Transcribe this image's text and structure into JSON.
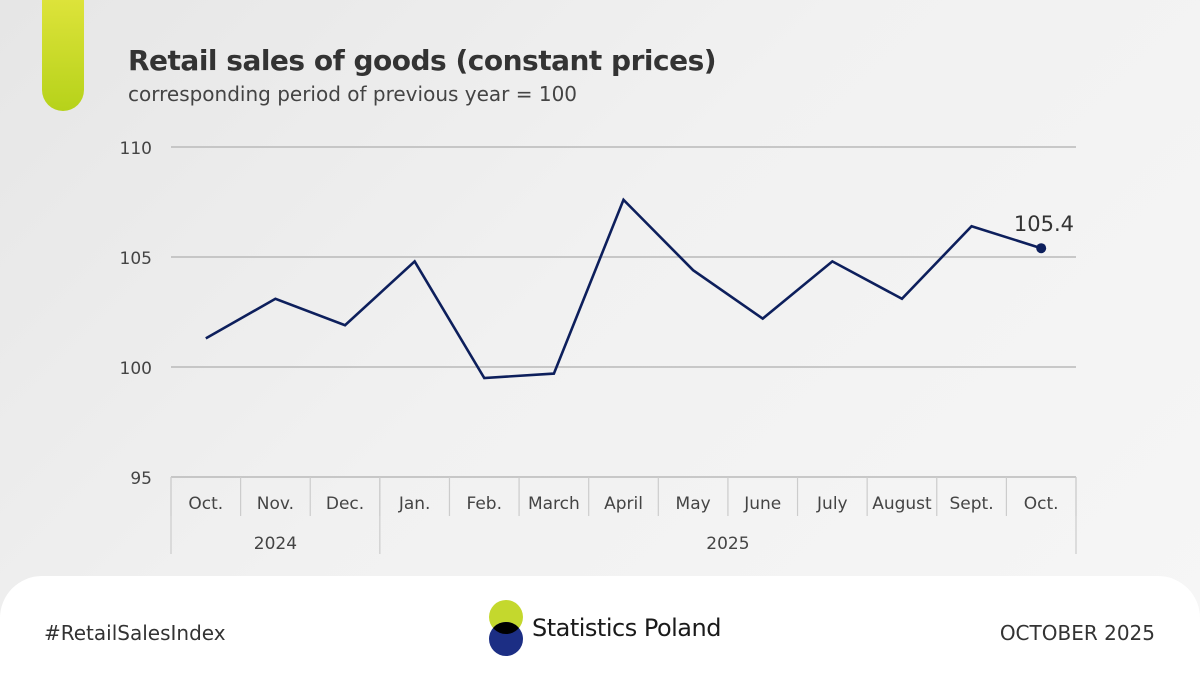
{
  "header": {
    "title": "Retail sales of goods (constant prices)",
    "subtitle": "corresponding period of previous year = 100"
  },
  "chart_data": {
    "type": "line",
    "title": "Retail sales of goods (constant prices)",
    "subtitle": "corresponding period of previous year = 100",
    "categories": [
      "Oct.",
      "Nov.",
      "Dec.",
      "Jan.",
      "Feb.",
      "March",
      "April",
      "May",
      "June",
      "July",
      "August",
      "Sept.",
      "Oct."
    ],
    "year_groups": [
      {
        "label": "2024",
        "count": 3
      },
      {
        "label": "2025",
        "count": 10
      }
    ],
    "series": [
      {
        "name": "Retail sales index",
        "values": [
          101.3,
          103.1,
          101.9,
          104.8,
          99.5,
          99.7,
          107.6,
          104.4,
          102.2,
          104.8,
          103.1,
          106.4,
          105.4
        ]
      }
    ],
    "yticks": [
      95,
      100,
      105,
      110
    ],
    "ylim": [
      95,
      110
    ],
    "grid": true,
    "last_value_label": "105.4",
    "colors": {
      "line": "#0d1f5c",
      "grid": "#b9b9b9",
      "axis": "#cccccc"
    }
  },
  "footer": {
    "hashtag": "#RetailSalesIndex",
    "brand": "Statistics Poland",
    "date": "OCTOBER 2025",
    "logo_colors": {
      "top": "#c4d82d",
      "bottom": "#1c2e84",
      "overlap": "#000000"
    }
  }
}
